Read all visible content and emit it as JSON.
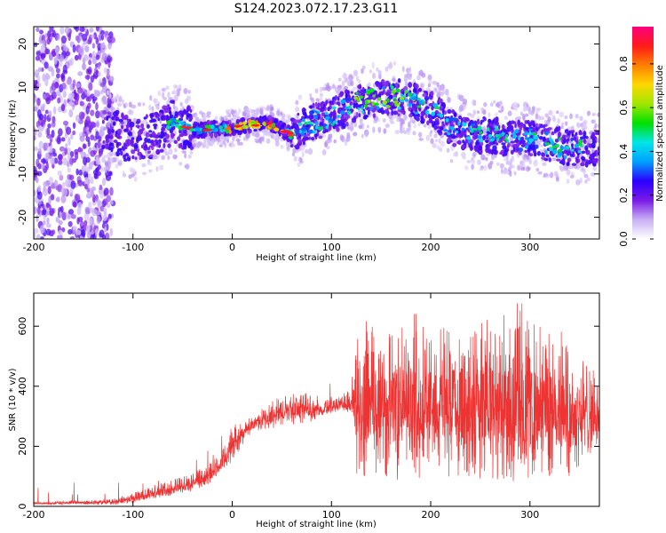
{
  "title": "S124.2023.072.17.23.G11",
  "chart_data": [
    {
      "type": "heatmap",
      "xlabel": "Height of straight line (km)",
      "ylabel": "Frequency (Hz)",
      "xlim": [
        -200,
        370
      ],
      "ylim": [
        -25,
        24
      ],
      "xticks": [
        -200,
        -100,
        0,
        100,
        200,
        300
      ],
      "yticks": [
        -20,
        -10,
        0,
        10,
        20
      ],
      "colorbar": {
        "label": "Normalized spectral amplitude",
        "range": [
          0,
          0.97
        ],
        "ticks": [
          "0.0",
          "0.2",
          "0.4",
          "0.6",
          "0.8"
        ],
        "stops": [
          "#ffffff",
          "#c9b0f5",
          "#7a1ae6",
          "#2a00ff",
          "#00a0ff",
          "#00e6e6",
          "#00e000",
          "#a0e600",
          "#ffd700",
          "#ff7f00",
          "#ff1a1a",
          "#ff0080"
        ]
      },
      "ridge": {
        "x": [
          -125,
          -100,
          -80,
          -60,
          -40,
          -20,
          0,
          20,
          40,
          60,
          80,
          100,
          120,
          140,
          160,
          180,
          200,
          220,
          240,
          260,
          280,
          300,
          320,
          340,
          370
        ],
        "frequency": [
          1,
          -3,
          -1,
          2,
          0,
          0.5,
          0.5,
          1.5,
          1.5,
          -1,
          2,
          3,
          6,
          7,
          8,
          7,
          5,
          1,
          -1,
          -1,
          -2,
          -2,
          -3,
          -4,
          -4
        ]
      }
    },
    {
      "type": "line",
      "xlabel": "Height of straight line (km)",
      "ylabel": "SNR (10 * v/v)",
      "xlim": [
        -200,
        370
      ],
      "ylim": [
        0,
        710
      ],
      "xticks": [
        -200,
        -100,
        0,
        100,
        200,
        300
      ],
      "yticks": [
        0,
        200,
        400,
        600
      ],
      "color": "#ee3333",
      "envelope": {
        "x": [
          -200,
          -150,
          -120,
          -100,
          -80,
          -60,
          -40,
          -20,
          -10,
          0,
          10,
          20,
          40,
          60,
          80,
          90,
          110,
          120,
          125,
          150,
          200,
          250,
          300,
          340,
          370
        ],
        "low": [
          5,
          5,
          5,
          10,
          25,
          35,
          50,
          80,
          110,
          150,
          200,
          250,
          260,
          270,
          280,
          300,
          320,
          310,
          100,
          80,
          90,
          80,
          80,
          100,
          200
        ],
        "high": [
          15,
          20,
          25,
          45,
          70,
          90,
          110,
          150,
          190,
          270,
          280,
          300,
          350,
          380,
          380,
          360,
          370,
          400,
          640,
          600,
          600,
          620,
          620,
          550,
          430
        ],
        "center": [
          10,
          12,
          15,
          25,
          40,
          55,
          75,
          110,
          140,
          200,
          240,
          270,
          300,
          320,
          320,
          320,
          340,
          340,
          360,
          340,
          330,
          330,
          320,
          300,
          300
        ]
      }
    }
  ]
}
